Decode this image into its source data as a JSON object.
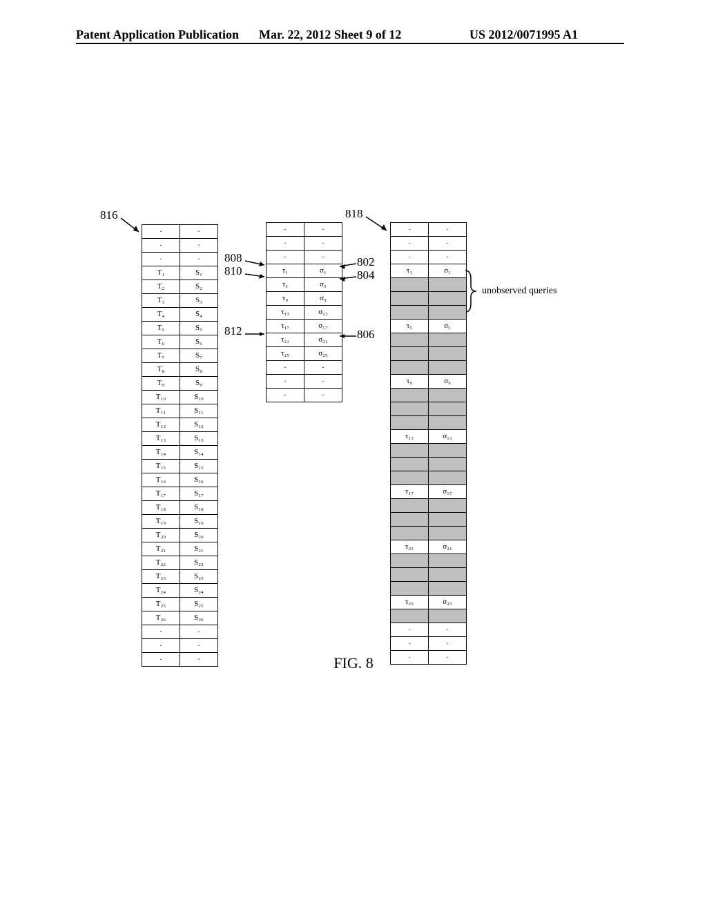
{
  "header": {
    "left": "Patent Application Publication",
    "mid": "Mar. 22, 2012  Sheet 9 of 12",
    "right": "US 2012/0071995 A1"
  },
  "labels": {
    "l816": "816",
    "l808": "808",
    "l810": "810",
    "l812": "812",
    "l818": "818",
    "l802": "802",
    "l804": "804",
    "l806": "806",
    "brace": "unobserved queries"
  },
  "figCaption": "FIG. 8",
  "leftTable": {
    "preDots": 3,
    "rows": [
      [
        "T₁",
        "S₁"
      ],
      [
        "T₂",
        "S₂"
      ],
      [
        "T₃",
        "S₃"
      ],
      [
        "T₄",
        "S₄"
      ],
      [
        "T₅",
        "S₅"
      ],
      [
        "T₆",
        "S₆"
      ],
      [
        "T₇",
        "S₇"
      ],
      [
        "T₈",
        "S₈"
      ],
      [
        "T₉",
        "S₉"
      ],
      [
        "T₁₀",
        "S₁₀"
      ],
      [
        "T₁₁",
        "S₁₁"
      ],
      [
        "T₁₂",
        "S₁₂"
      ],
      [
        "T₁₃",
        "S₁₃"
      ],
      [
        "T₁₄",
        "S₁₄"
      ],
      [
        "T₁₅",
        "S₁₅"
      ],
      [
        "T₁₆",
        "S₁₆"
      ],
      [
        "T₁₇",
        "S₁₇"
      ],
      [
        "T₁₈",
        "S₁₈"
      ],
      [
        "T₁₉",
        "S₁₉"
      ],
      [
        "T₂₀",
        "S₂₀"
      ],
      [
        "T₂₁",
        "S₂₁"
      ],
      [
        "T₂₂",
        "S₂₂"
      ],
      [
        "T₂₃",
        "S₂₃"
      ],
      [
        "T₂₄",
        "S₂₄"
      ],
      [
        "T₂₅",
        "S₂₅"
      ],
      [
        "T₂₆",
        "S₂₆"
      ]
    ],
    "postDots": 3
  },
  "midTable": {
    "preDots": 3,
    "rows": [
      [
        "τ₁",
        "σ₁"
      ],
      [
        "τ₅",
        "σ₅"
      ],
      [
        "τ₉",
        "σ₉"
      ],
      [
        "τ₁₃",
        "σ₁₃"
      ],
      [
        "τ₁₇",
        "σ₁₇"
      ],
      [
        "τ₂₁",
        "σ₂₁"
      ],
      [
        "τ₂₅",
        "σ₂₅"
      ]
    ],
    "postDots": 3
  },
  "rightTable": {
    "preDots": 3,
    "rows": [
      {
        "v": [
          "τ₁",
          "σ₁"
        ],
        "s": false
      },
      {
        "v": [
          "",
          ""
        ],
        "s": true
      },
      {
        "v": [
          "",
          ""
        ],
        "s": true
      },
      {
        "v": [
          "",
          ""
        ],
        "s": true
      },
      {
        "v": [
          "τ₅",
          "σ₅"
        ],
        "s": false
      },
      {
        "v": [
          "",
          ""
        ],
        "s": true
      },
      {
        "v": [
          "",
          ""
        ],
        "s": true
      },
      {
        "v": [
          "",
          ""
        ],
        "s": true
      },
      {
        "v": [
          "τ₉",
          "σ₉"
        ],
        "s": false
      },
      {
        "v": [
          "",
          ""
        ],
        "s": true
      },
      {
        "v": [
          "",
          ""
        ],
        "s": true
      },
      {
        "v": [
          "",
          ""
        ],
        "s": true
      },
      {
        "v": [
          "τ₁₃",
          "σ₁₃"
        ],
        "s": false
      },
      {
        "v": [
          "",
          ""
        ],
        "s": true
      },
      {
        "v": [
          "",
          ""
        ],
        "s": true
      },
      {
        "v": [
          "",
          ""
        ],
        "s": true
      },
      {
        "v": [
          "τ₁₇",
          "σ₁₇"
        ],
        "s": false
      },
      {
        "v": [
          "",
          ""
        ],
        "s": true
      },
      {
        "v": [
          "",
          ""
        ],
        "s": true
      },
      {
        "v": [
          "",
          ""
        ],
        "s": true
      },
      {
        "v": [
          "τ₂₁",
          "σ₂₁"
        ],
        "s": false
      },
      {
        "v": [
          "",
          ""
        ],
        "s": true
      },
      {
        "v": [
          "",
          ""
        ],
        "s": true
      },
      {
        "v": [
          "",
          ""
        ],
        "s": true
      },
      {
        "v": [
          "τ₂₅",
          "σ₂₅"
        ],
        "s": false
      },
      {
        "v": [
          "",
          ""
        ],
        "s": true
      }
    ],
    "postDots": 3
  }
}
